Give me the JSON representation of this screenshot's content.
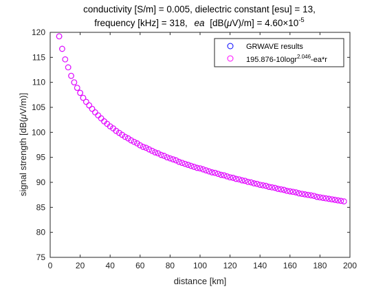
{
  "chart_data": {
    "type": "scatter",
    "title_line1": "conductivity [S/m] = 0.005, dielectric constant [esu] = 13,",
    "title_line2_prefix": "frequency [kHz] = 318,",
    "title_line2_ea": "ea",
    "title_line2_units": "[dB(",
    "title_line2_mu": "μ",
    "title_line2_units_end": "V)/m] = 4.60×10",
    "title_line2_exp": "-5",
    "xlabel": "distance [km]",
    "ylabel_prefix": "signal strength [dB(",
    "ylabel_mu": "μ",
    "ylabel_suffix": "V/m)]",
    "xlim": [
      0,
      200
    ],
    "ylim": [
      75,
      120
    ],
    "xticks": [
      0,
      20,
      40,
      60,
      80,
      100,
      120,
      140,
      160,
      180,
      200
    ],
    "yticks": [
      75,
      80,
      85,
      90,
      95,
      100,
      105,
      110,
      115,
      120
    ],
    "grid": false,
    "legend_placement": "top-right",
    "legend": {
      "entry1": "GRWAVE results",
      "entry2_base": "195.876-10logr",
      "entry2_exp": "2.046",
      "entry2_tail": "-ea*r"
    },
    "series": [
      {
        "color": "#0000ff",
        "x": [
          6,
          8,
          10,
          12,
          14,
          16,
          18,
          20,
          22,
          24,
          26,
          28,
          30,
          32,
          34,
          36,
          38,
          40,
          42,
          44,
          46,
          48,
          50,
          52,
          54,
          56,
          58,
          60,
          62,
          64,
          66,
          68,
          70,
          72,
          74,
          76,
          78,
          80,
          82,
          84,
          86,
          88,
          90,
          92,
          94,
          96,
          98,
          100,
          102,
          104,
          106,
          108,
          110,
          112,
          114,
          116,
          118,
          120,
          122,
          124,
          126,
          128,
          130,
          132,
          134,
          136,
          138,
          140,
          142,
          144,
          146,
          148,
          150,
          152,
          154,
          156,
          158,
          160,
          162,
          164,
          166,
          168,
          170,
          172,
          174,
          176,
          178,
          180,
          182,
          184,
          186,
          188,
          190,
          192,
          194,
          196
        ],
        "y": [
          119.2,
          116.7,
          114.6,
          113.0,
          111.3,
          110.0,
          108.9,
          107.9,
          106.9,
          106.1,
          105.4,
          104.7,
          104.0,
          103.4,
          102.8,
          102.2,
          101.7,
          101.2,
          100.8,
          100.3,
          99.9,
          99.5,
          99.1,
          98.8,
          98.4,
          98.1,
          97.8,
          97.4,
          97.1,
          96.9,
          96.6,
          96.3,
          96.0,
          95.8,
          95.5,
          95.3,
          95.0,
          94.8,
          94.6,
          94.4,
          94.1,
          93.9,
          93.7,
          93.5,
          93.3,
          93.1,
          92.9,
          92.8,
          92.6,
          92.4,
          92.2,
          92.0,
          91.9,
          91.7,
          91.5,
          91.4,
          91.2,
          91.0,
          90.9,
          90.7,
          90.6,
          90.4,
          90.3,
          90.1,
          90.0,
          89.8,
          89.7,
          89.5,
          89.4,
          89.3,
          89.1,
          89.0,
          88.9,
          88.7,
          88.6,
          88.5,
          88.3,
          88.2,
          88.1,
          88.0,
          87.8,
          87.7,
          87.6,
          87.5,
          87.4,
          87.3,
          87.1,
          87.0,
          86.9,
          86.8,
          86.7,
          86.6,
          86.5,
          86.4,
          86.3,
          86.2
        ]
      },
      {
        "color": "#ff00ff",
        "x": [
          6,
          8,
          10,
          12,
          14,
          16,
          18,
          20,
          22,
          24,
          26,
          28,
          30,
          32,
          34,
          36,
          38,
          40,
          42,
          44,
          46,
          48,
          50,
          52,
          54,
          56,
          58,
          60,
          62,
          64,
          66,
          68,
          70,
          72,
          74,
          76,
          78,
          80,
          82,
          84,
          86,
          88,
          90,
          92,
          94,
          96,
          98,
          100,
          102,
          104,
          106,
          108,
          110,
          112,
          114,
          116,
          118,
          120,
          122,
          124,
          126,
          128,
          130,
          132,
          134,
          136,
          138,
          140,
          142,
          144,
          146,
          148,
          150,
          152,
          154,
          156,
          158,
          160,
          162,
          164,
          166,
          168,
          170,
          172,
          174,
          176,
          178,
          180,
          182,
          184,
          186,
          188,
          190,
          192,
          194,
          196
        ],
        "y": [
          119.2,
          116.7,
          114.6,
          113.0,
          111.3,
          110.0,
          108.9,
          107.9,
          106.9,
          106.1,
          105.4,
          104.7,
          104.0,
          103.4,
          102.8,
          102.2,
          101.7,
          101.2,
          100.8,
          100.3,
          99.9,
          99.5,
          99.1,
          98.8,
          98.4,
          98.1,
          97.8,
          97.4,
          97.1,
          96.9,
          96.6,
          96.3,
          96.0,
          95.8,
          95.5,
          95.3,
          95.0,
          94.8,
          94.6,
          94.4,
          94.1,
          93.9,
          93.7,
          93.5,
          93.3,
          93.1,
          92.9,
          92.8,
          92.6,
          92.4,
          92.2,
          92.0,
          91.9,
          91.7,
          91.5,
          91.4,
          91.2,
          91.0,
          90.9,
          90.7,
          90.6,
          90.4,
          90.3,
          90.1,
          90.0,
          89.8,
          89.7,
          89.5,
          89.4,
          89.3,
          89.1,
          89.0,
          88.9,
          88.7,
          88.6,
          88.5,
          88.3,
          88.2,
          88.1,
          88.0,
          87.8,
          87.7,
          87.6,
          87.5,
          87.4,
          87.3,
          87.1,
          87.0,
          86.9,
          86.8,
          86.7,
          86.6,
          86.5,
          86.4,
          86.3,
          86.2
        ]
      }
    ]
  }
}
